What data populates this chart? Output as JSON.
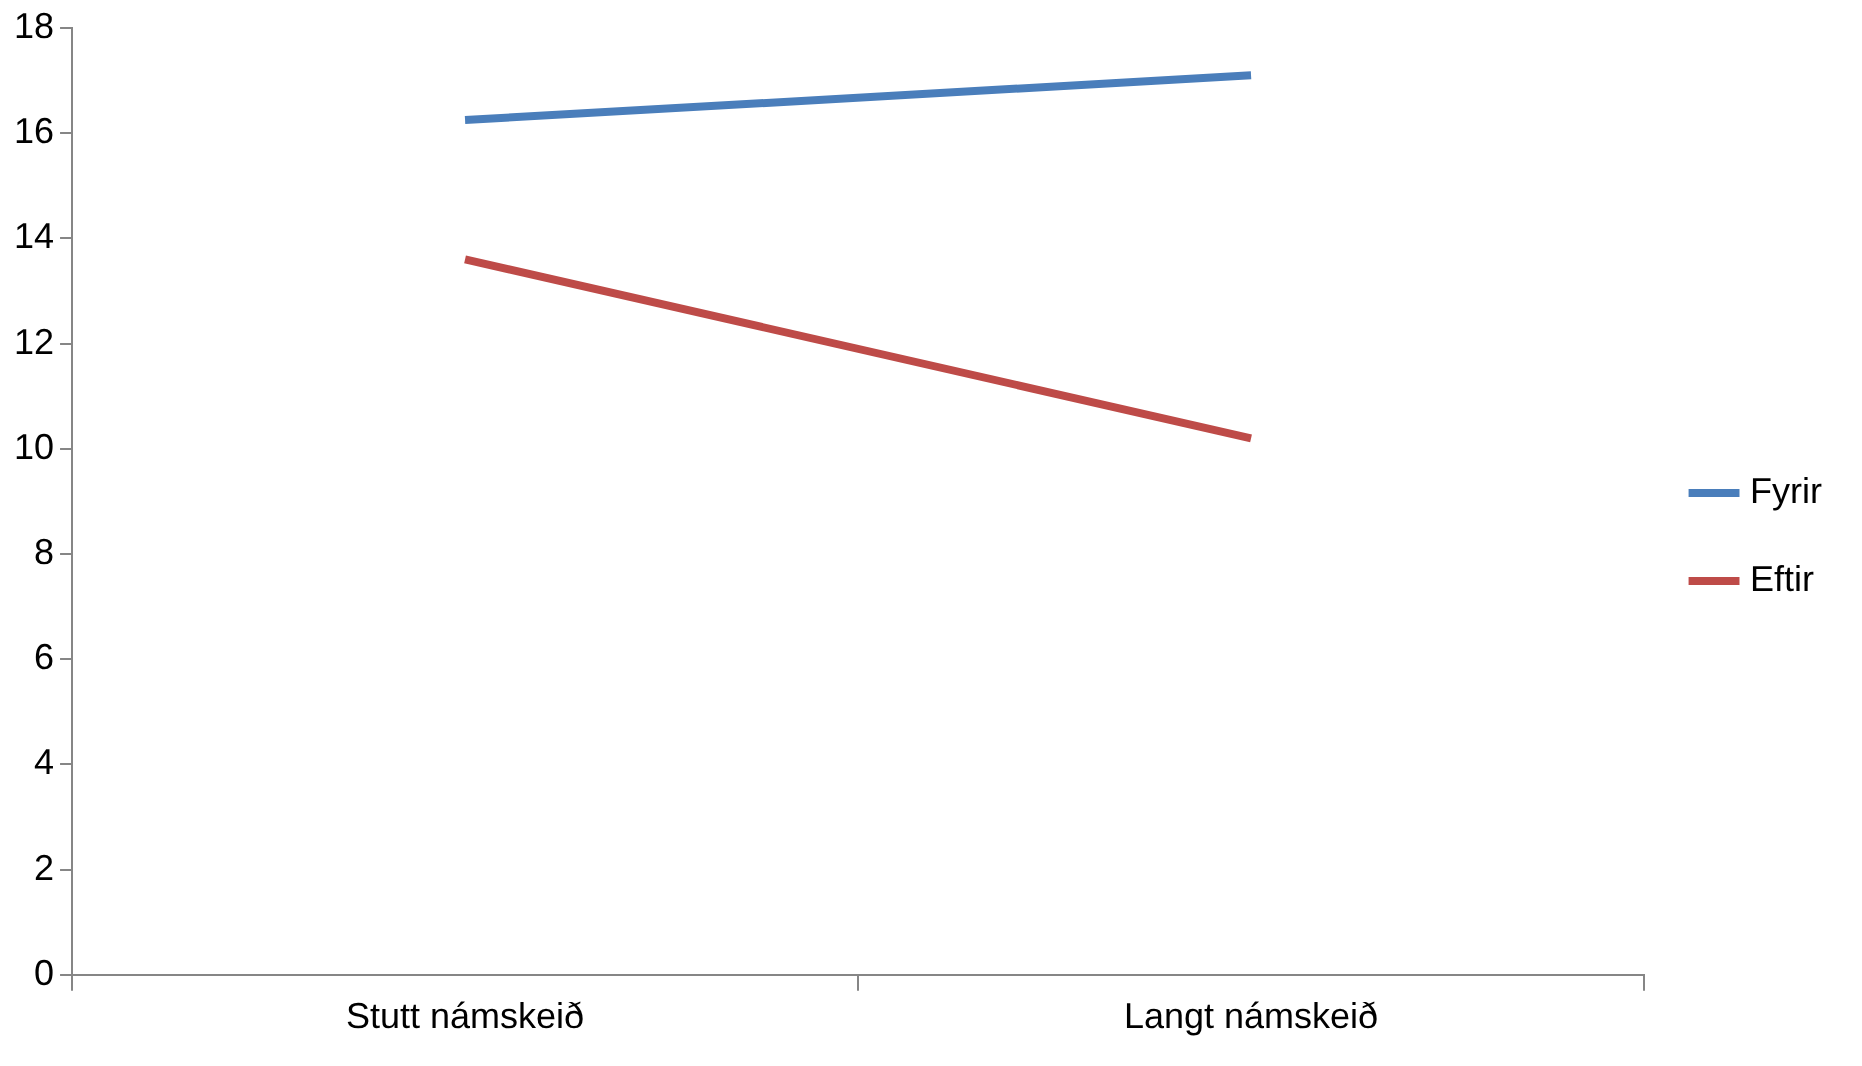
{
  "chart_data": {
    "type": "line",
    "categories": [
      "Stutt námskeið",
      "Langt námskeið"
    ],
    "series": [
      {
        "name": "Fyrir",
        "color": "#4a7ebb",
        "values": [
          16.25,
          17.1
        ]
      },
      {
        "name": "Eftir",
        "color": "#be4b48",
        "values": [
          13.6,
          10.2
        ]
      }
    ],
    "ylim": [
      0,
      18
    ],
    "yticks": [
      0,
      2,
      4,
      6,
      8,
      10,
      12,
      14,
      16,
      18
    ],
    "grid": false,
    "legend": "right",
    "marker": "none"
  }
}
